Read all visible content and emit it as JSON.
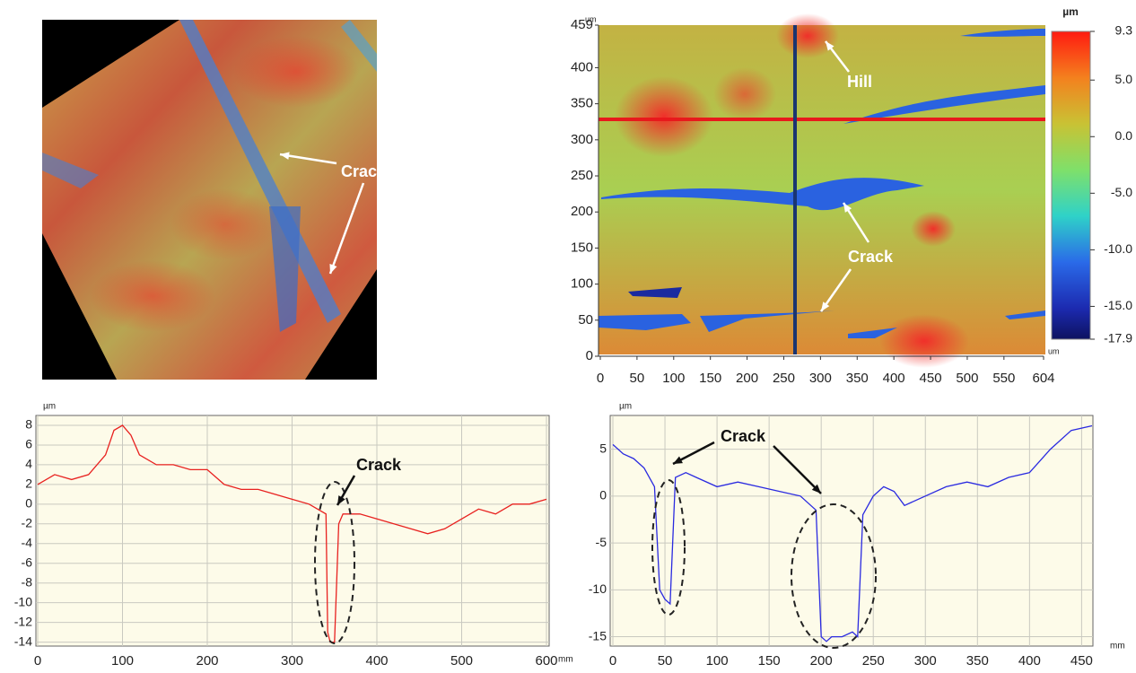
{
  "chart_data": [
    {
      "type": "surface",
      "annotations": [
        "Crack"
      ]
    },
    {
      "type": "map",
      "xlabel": "um",
      "ylabel": "um",
      "colorbar_label": "µm",
      "xlim": [
        0,
        604
      ],
      "ylim": [
        0,
        459
      ],
      "xticks": [
        0,
        50,
        100,
        150,
        200,
        250,
        300,
        350,
        400,
        450,
        500,
        550,
        604
      ],
      "yticks": [
        0,
        50,
        100,
        150,
        200,
        250,
        300,
        350,
        400,
        459
      ],
      "clim": [
        -17.9,
        9.3
      ],
      "cticks": [
        9.3,
        {
          "value": 5,
          "label": "5.0"
        },
        {
          "value": 0,
          "label": "0.0"
        },
        {
          "value": -5,
          "label": "-5.0"
        },
        {
          "value": -10,
          "label": "-10.0"
        },
        {
          "value": -15,
          "label": "-15.0"
        },
        -17.9
      ],
      "annotations": [
        "Hill",
        "Crack"
      ]
    },
    {
      "type": "line",
      "xlabel": "mm",
      "ylabel": "µm",
      "color": "#e8211f",
      "xlim": [
        0,
        600
      ],
      "ylim": [
        -14.4,
        9
      ],
      "xticks": [
        0,
        100,
        200,
        300,
        400,
        500,
        600
      ],
      "yticks": [
        8,
        6,
        4,
        2,
        0,
        -2,
        -4,
        -6,
        -8,
        -10,
        -12,
        -14
      ],
      "x": [
        0,
        20,
        40,
        60,
        80,
        90,
        100,
        110,
        120,
        140,
        160,
        180,
        200,
        220,
        240,
        260,
        280,
        300,
        320,
        340,
        342,
        345,
        350,
        355,
        360,
        380,
        400,
        420,
        440,
        460,
        480,
        500,
        520,
        540,
        560,
        580,
        600
      ],
      "values": [
        2,
        3,
        2.5,
        3,
        5,
        7.5,
        8,
        7,
        5,
        4,
        4,
        3.5,
        3.5,
        2,
        1.5,
        1.5,
        1,
        0.5,
        0,
        -1,
        -13,
        -14,
        -14,
        -2,
        -1,
        -1,
        -1.5,
        -2,
        -2.5,
        -3,
        -2.5,
        -1.5,
        -0.5,
        -1,
        0,
        0,
        0.5
      ],
      "annotations": [
        "Crack"
      ]
    },
    {
      "type": "line",
      "xlabel": "mm",
      "ylabel": "µm",
      "color": "#2a2ae0",
      "xlim": [
        0,
        460
      ],
      "ylim": [
        -16,
        8.6
      ],
      "xticks": [
        0,
        50,
        100,
        150,
        200,
        250,
        300,
        350,
        400,
        450
      ],
      "yticks": [
        5,
        0,
        -5,
        -10,
        -15
      ],
      "x": [
        0,
        10,
        20,
        30,
        40,
        45,
        50,
        55,
        60,
        70,
        80,
        100,
        120,
        140,
        160,
        180,
        190,
        195,
        200,
        205,
        210,
        220,
        230,
        235,
        240,
        250,
        260,
        270,
        280,
        300,
        320,
        340,
        360,
        380,
        400,
        420,
        440,
        460
      ],
      "values": [
        5.5,
        4.5,
        4,
        3,
        1,
        -10,
        -11,
        -11.5,
        2,
        2.5,
        2,
        1,
        1.5,
        1,
        0.5,
        0,
        -1,
        -1.5,
        -15,
        -15.5,
        -15,
        -15,
        -14.5,
        -15,
        -2,
        0,
        1,
        0.5,
        -1,
        0,
        1,
        1.5,
        1,
        2,
        2.5,
        5,
        7,
        7.5
      ],
      "annotations": [
        "Crack"
      ]
    }
  ]
}
